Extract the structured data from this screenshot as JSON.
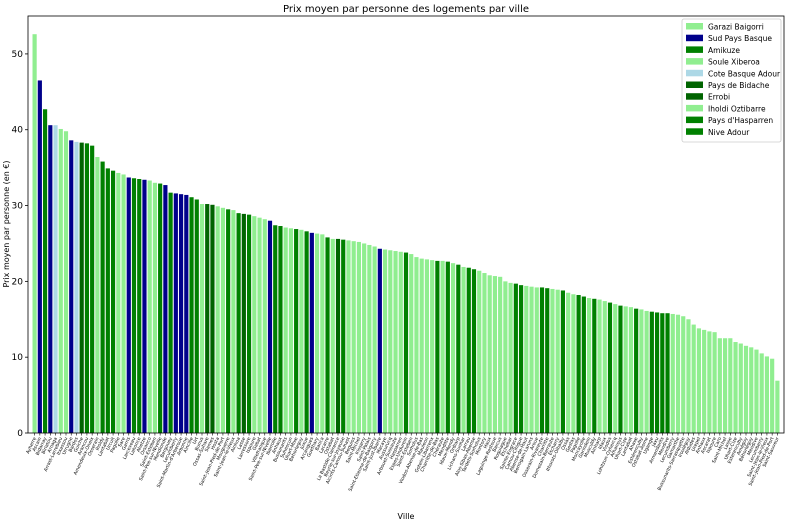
{
  "chart_data": {
    "type": "bar",
    "title": "Prix moyen par personne des logements par ville",
    "xlabel": "Ville",
    "ylabel": "Prix moyen par personne (en €)",
    "ylim": [
      0,
      55
    ],
    "yticks": [
      0,
      10,
      20,
      30,
      40,
      50
    ],
    "grid": false,
    "legend_position": "top-right",
    "legend": [
      {
        "name": "Garazi Baigorri",
        "color": "#90ee90"
      },
      {
        "name": "Sud Pays Basque",
        "color": "#00008b"
      },
      {
        "name": "Amikuze",
        "color": "#008000"
      },
      {
        "name": "Soule Xiberoa",
        "color": "#90ee90"
      },
      {
        "name": "Cote Basque Adour",
        "color": "#add8e6"
      },
      {
        "name": "Pays de Bidache",
        "color": "#006400"
      },
      {
        "name": "Errobi",
        "color": "#006400"
      },
      {
        "name": "Iholdi Oztibarre",
        "color": "#90ee90"
      },
      {
        "name": "Pays d'Hasparren",
        "color": "#008000"
      },
      {
        "name": "Nive Adour",
        "color": "#008000"
      }
    ],
    "bars": [
      {
        "label": "Ayherre",
        "value": 52.6,
        "group": "Garazi Baigorri"
      },
      {
        "label": "Ascain",
        "value": 46.5,
        "group": "Sud Pays Basque"
      },
      {
        "label": "Bidarray",
        "value": 42.7,
        "group": "Amikuze"
      },
      {
        "label": "Biriatou",
        "value": 40.6,
        "group": "Sud Pays Basque"
      },
      {
        "label": "Arnaga",
        "value": 40.6,
        "group": "Cote Basque Adour"
      },
      {
        "label": "Arrast-Larrebieu",
        "value": 40.1,
        "group": "Soule Xiberoa"
      },
      {
        "label": "Itxassou",
        "value": 39.8,
        "group": "Garazi Baigorri"
      },
      {
        "label": "Urrugne",
        "value": 38.6,
        "group": "Sud Pays Basque"
      },
      {
        "label": "Bardos",
        "value": 38.4,
        "group": "Cote Basque Adour"
      },
      {
        "label": "Guiche",
        "value": 38.3,
        "group": "Pays de Bidache"
      },
      {
        "label": "Arancou",
        "value": 38.2,
        "group": "Amikuze"
      },
      {
        "label": "Amendeuix-Oneix",
        "value": 37.9,
        "group": "Amikuze"
      },
      {
        "label": "Osserain",
        "value": 36.4,
        "group": "Garazi Baigorri"
      },
      {
        "label": "Iholdy",
        "value": 35.8,
        "group": "Amikuze"
      },
      {
        "label": "Lantabat",
        "value": 34.9,
        "group": "Amikuze"
      },
      {
        "label": "Urcuit",
        "value": 34.6,
        "group": "Amikuze"
      },
      {
        "label": "Pagolle",
        "value": 34.3,
        "group": "Garazi Baigorri"
      },
      {
        "label": "Sare",
        "value": 34.1,
        "group": "Garazi Baigorri"
      },
      {
        "label": "Garris",
        "value": 33.7,
        "group": "Sud Pays Basque"
      },
      {
        "label": "Larceveau",
        "value": 33.6,
        "group": "Amikuze"
      },
      {
        "label": "Lahonce",
        "value": 33.5,
        "group": "Amikuze"
      },
      {
        "label": "Ahetze",
        "value": 33.4,
        "group": "Sud Pays Basque"
      },
      {
        "label": "Orsanco",
        "value": 33.3,
        "group": "Garazi Baigorri"
      },
      {
        "label": "Saint-Esteben",
        "value": 33.0,
        "group": "Soule Xiberoa"
      },
      {
        "label": "Saint-Pee-sur-Nivelle",
        "value": 32.9,
        "group": "Amikuze"
      },
      {
        "label": "Mendionde",
        "value": 32.7,
        "group": "Sud Pays Basque"
      },
      {
        "label": "Bergouey",
        "value": 31.7,
        "group": "Amikuze"
      },
      {
        "label": "Lecumberry",
        "value": 31.6,
        "group": "Sud Pays Basque"
      },
      {
        "label": "Saint-Martin-d'Arberoue",
        "value": 31.5,
        "group": "Sud Pays Basque"
      },
      {
        "label": "Arbonne",
        "value": 31.4,
        "group": "Sud Pays Basque"
      },
      {
        "label": "Aincille",
        "value": 31.1,
        "group": "Amikuze"
      },
      {
        "label": "Urt",
        "value": 30.8,
        "group": "Amikuze"
      },
      {
        "label": "Bunus",
        "value": 30.2,
        "group": "Garazi Baigorri"
      },
      {
        "label": "Ossas-Suhare",
        "value": 30.2,
        "group": "Pays de Bidache"
      },
      {
        "label": "Sames",
        "value": 30.1,
        "group": "Pays de Bidache"
      },
      {
        "label": "Hosta",
        "value": 29.9,
        "group": "Garazi Baigorri"
      },
      {
        "label": "Saint-Jean-Pied-de-Port",
        "value": 29.7,
        "group": "Garazi Baigorri"
      },
      {
        "label": "Mouguerre",
        "value": 29.5,
        "group": "Amikuze"
      },
      {
        "label": "Saint-Jean-le-Vieux",
        "value": 29.4,
        "group": "Garazi Baigorri"
      },
      {
        "label": "Ainhoa",
        "value": 29.0,
        "group": "Amikuze"
      },
      {
        "label": "Lasse",
        "value": 28.9,
        "group": "Pays de Bidache"
      },
      {
        "label": "Larressore",
        "value": 28.8,
        "group": "Amikuze"
      },
      {
        "label": "Ispoure",
        "value": 28.6,
        "group": "Garazi Baigorri"
      },
      {
        "label": "Gabat",
        "value": 28.4,
        "group": "Garazi Baigorri"
      },
      {
        "label": "Villefranque",
        "value": 28.2,
        "group": "Garazi Baigorri"
      },
      {
        "label": "Saint-Pee-sur-Nivelle",
        "value": 28.0,
        "group": "Sud Pays Basque"
      },
      {
        "label": "Ibarrolle",
        "value": 27.4,
        "group": "Amikuze"
      },
      {
        "label": "Anhaux",
        "value": 27.3,
        "group": "Amikuze"
      },
      {
        "label": "Bussunarits",
        "value": 27.1,
        "group": "Garazi Baigorri"
      },
      {
        "label": "Suhescun",
        "value": 27.0,
        "group": "Garazi Baigorri"
      },
      {
        "label": "Uhart-Mixe",
        "value": 26.9,
        "group": "Amikuze"
      },
      {
        "label": "Behorleguy",
        "value": 26.8,
        "group": "Garazi Baigorri"
      },
      {
        "label": "Juxue",
        "value": 26.6,
        "group": "Amikuze"
      },
      {
        "label": "Arcangues",
        "value": 26.4,
        "group": "Sud Pays Basque"
      },
      {
        "label": "Guethary",
        "value": 26.3,
        "group": "Garazi Baigorri"
      },
      {
        "label": "Banca",
        "value": 26.2,
        "group": "Garazi Baigorri"
      },
      {
        "label": "Lacarre",
        "value": 25.8,
        "group": "Amikuze"
      },
      {
        "label": "Ostabat",
        "value": 25.6,
        "group": "Garazi Baigorri"
      },
      {
        "label": "La Bastide-Clairence",
        "value": 25.6,
        "group": "Pays de Bidache"
      },
      {
        "label": "Beyrie-sur-Joyeuse",
        "value": 25.5,
        "group": "Amikuze"
      },
      {
        "label": "Aicirits-Camou-Suhast",
        "value": 25.4,
        "group": "Garazi Baigorri"
      },
      {
        "label": "Beguios",
        "value": 25.3,
        "group": "Garazi Baigorri"
      },
      {
        "label": "Saint-Michel",
        "value": 25.2,
        "group": "Garazi Baigorri"
      },
      {
        "label": "Irissarry",
        "value": 25.0,
        "group": "Garazi Baigorri"
      },
      {
        "label": "Saint-Palais",
        "value": 24.8,
        "group": "Garazi Baigorri"
      },
      {
        "label": "Saint-Etienne-de-Baigorry",
        "value": 24.6,
        "group": "Garazi Baigorri"
      },
      {
        "label": "Saint-Just-Ibarre",
        "value": 24.3,
        "group": "Sud Pays Basque"
      },
      {
        "label": "Macaye",
        "value": 24.2,
        "group": "Garazi Baigorri"
      },
      {
        "label": "Aussurucq",
        "value": 24.1,
        "group": "Garazi Baigorri"
      },
      {
        "label": "Arbouet-Sussaute",
        "value": 24.0,
        "group": "Garazi Baigorri"
      },
      {
        "label": "Hasparren",
        "value": 23.9,
        "group": "Garazi Baigorri"
      },
      {
        "label": "Espes-Undurein",
        "value": 23.8,
        "group": "Amikuze"
      },
      {
        "label": "Saint-Esteben",
        "value": 23.6,
        "group": "Garazi Baigorri"
      },
      {
        "label": "Sorholus",
        "value": 23.2,
        "group": "Garazi Baigorri"
      },
      {
        "label": "Viodos-Abense-de-Bas",
        "value": 23.0,
        "group": "Garazi Baigorri"
      },
      {
        "label": "Mauleon",
        "value": 22.9,
        "group": "Garazi Baigorri"
      },
      {
        "label": "Gotein-Libarrenx",
        "value": 22.8,
        "group": "Garazi Baigorri"
      },
      {
        "label": "Charritte-de-Bas",
        "value": 22.7,
        "group": "Amikuze"
      },
      {
        "label": "Chéraute",
        "value": 22.7,
        "group": "Garazi Baigorri"
      },
      {
        "label": "Menditte",
        "value": 22.6,
        "group": "Amikuze"
      },
      {
        "label": "Idaux-Mendy",
        "value": 22.4,
        "group": "Garazi Baigorri"
      },
      {
        "label": "Ordiarp",
        "value": 22.2,
        "group": "Amikuze"
      },
      {
        "label": "Lichans-Sunhar",
        "value": 21.9,
        "group": "Garazi Baigorri"
      },
      {
        "label": "Larrau",
        "value": 21.8,
        "group": "Amikuze"
      },
      {
        "label": "Alos-Sibas-Abense",
        "value": 21.6,
        "group": "Amikuze"
      },
      {
        "label": "Tardets-Sorholus",
        "value": 21.4,
        "group": "Garazi Baigorri"
      },
      {
        "label": "Montory",
        "value": 21.1,
        "group": "Garazi Baigorri"
      },
      {
        "label": "Haux",
        "value": 20.8,
        "group": "Garazi Baigorri"
      },
      {
        "label": "Laguinge-Restoue",
        "value": 20.7,
        "group": "Garazi Baigorri"
      },
      {
        "label": "Barcus",
        "value": 20.6,
        "group": "Garazi Baigorri"
      },
      {
        "label": "Roquiague",
        "value": 20.0,
        "group": "Garazi Baigorri"
      },
      {
        "label": "Etchebar",
        "value": 19.8,
        "group": "Garazi Baigorri"
      },
      {
        "label": "Sainte-Engrace",
        "value": 19.7,
        "group": "Amikuze"
      },
      {
        "label": "Camou-Cihigue",
        "value": 19.5,
        "group": "Amikuze"
      },
      {
        "label": "Abense-de-Haut",
        "value": 19.4,
        "group": "Garazi Baigorri"
      },
      {
        "label": "Berrogain-Laruns",
        "value": 19.3,
        "group": "Garazi Baigorri"
      },
      {
        "label": "Aroue",
        "value": 19.2,
        "group": "Garazi Baigorri"
      },
      {
        "label": "Osserain-Rivareyte",
        "value": 19.2,
        "group": "Amikuze"
      },
      {
        "label": "Charritte",
        "value": 19.1,
        "group": "Amikuze"
      },
      {
        "label": "Domezain-Berraute",
        "value": 19.0,
        "group": "Garazi Baigorri"
      },
      {
        "label": "Etcharry",
        "value": 18.9,
        "group": "Garazi Baigorri"
      },
      {
        "label": "Ithorots-Olhaiby",
        "value": 18.8,
        "group": "Amikuze"
      },
      {
        "label": "Ossas",
        "value": 18.5,
        "group": "Garazi Baigorri"
      },
      {
        "label": "Gestas",
        "value": 18.3,
        "group": "Garazi Baigorri"
      },
      {
        "label": "Pagolle",
        "value": 18.2,
        "group": "Amikuze"
      },
      {
        "label": "Moncayolle",
        "value": 18.0,
        "group": "Amikuze"
      },
      {
        "label": "Garindein",
        "value": 17.8,
        "group": "Garazi Baigorri"
      },
      {
        "label": "Musculdy",
        "value": 17.7,
        "group": "Amikuze"
      },
      {
        "label": "Ainharp",
        "value": 17.6,
        "group": "Garazi Baigorri"
      },
      {
        "label": "Idaux",
        "value": 17.4,
        "group": "Garazi Baigorri"
      },
      {
        "label": "Viodos",
        "value": 17.2,
        "group": "Amikuze"
      },
      {
        "label": "Lohitzun-Oyhercq",
        "value": 17.0,
        "group": "Garazi Baigorri"
      },
      {
        "label": "Arhansus",
        "value": 16.8,
        "group": "Amikuze"
      },
      {
        "label": "Uhart-Cize",
        "value": 16.7,
        "group": "Garazi Baigorri"
      },
      {
        "label": "Lantabat",
        "value": 16.6,
        "group": "Garazi Baigorri"
      },
      {
        "label": "Ahaxe",
        "value": 16.4,
        "group": "Amikuze"
      },
      {
        "label": "Estérençuby",
        "value": 16.3,
        "group": "Garazi Baigorri"
      },
      {
        "label": "Ostabat-Asme",
        "value": 16.1,
        "group": "Garazi Baigorri"
      },
      {
        "label": "Ugange",
        "value": 16.0,
        "group": "Amikuze"
      },
      {
        "label": "Jaxu",
        "value": 15.9,
        "group": "Amikuze"
      },
      {
        "label": "Armendarits",
        "value": 15.8,
        "group": "Amikuze"
      },
      {
        "label": "Mendive",
        "value": 15.8,
        "group": "Amikuze"
      },
      {
        "label": "Lecumberry",
        "value": 15.7,
        "group": "Garazi Baigorri"
      },
      {
        "label": "Gamarthe",
        "value": 15.6,
        "group": "Garazi Baigorri"
      },
      {
        "label": "Bussunarits-Sarrasquette",
        "value": 15.4,
        "group": "Garazi Baigorri"
      },
      {
        "label": "Irouléguy",
        "value": 15.0,
        "group": "Garazi Baigorri"
      },
      {
        "label": "Aldudes",
        "value": 14.3,
        "group": "Garazi Baigorri"
      },
      {
        "label": "Urepel",
        "value": 13.8,
        "group": "Garazi Baigorri"
      },
      {
        "label": "Anhaux",
        "value": 13.6,
        "group": "Garazi Baigorri"
      },
      {
        "label": "Ascarat",
        "value": 13.4,
        "group": "Garazi Baigorri"
      },
      {
        "label": "Ispoure",
        "value": 13.3,
        "group": "Garazi Baigorri"
      },
      {
        "label": "Caro",
        "value": 12.5,
        "group": "Garazi Baigorri"
      },
      {
        "label": "Saint-Michel",
        "value": 12.5,
        "group": "Garazi Baigorri"
      },
      {
        "label": "Lasse",
        "value": 12.5,
        "group": "Garazi Baigorri"
      },
      {
        "label": "Uhart-Cize",
        "value": 12.0,
        "group": "Garazi Baigorri"
      },
      {
        "label": "Esterencuby",
        "value": 11.8,
        "group": "Garazi Baigorri"
      },
      {
        "label": "Arnéguy",
        "value": 11.5,
        "group": "Garazi Baigorri"
      },
      {
        "label": "Béhorléguy",
        "value": 11.3,
        "group": "Garazi Baigorri"
      },
      {
        "label": "Mendive",
        "value": 11.0,
        "group": "Garazi Baigorri"
      },
      {
        "label": "Lecumberry",
        "value": 10.5,
        "group": "Garazi Baigorri"
      },
      {
        "label": "Saint-Jean-le-Vieux",
        "value": 10.1,
        "group": "Garazi Baigorri"
      },
      {
        "label": "Saint-Jean-Pied-de-Port",
        "value": 9.8,
        "group": "Garazi Baigorri"
      },
      {
        "label": "Saint-Sauveur",
        "value": 6.9,
        "group": "Garazi Baigorri"
      }
    ]
  }
}
